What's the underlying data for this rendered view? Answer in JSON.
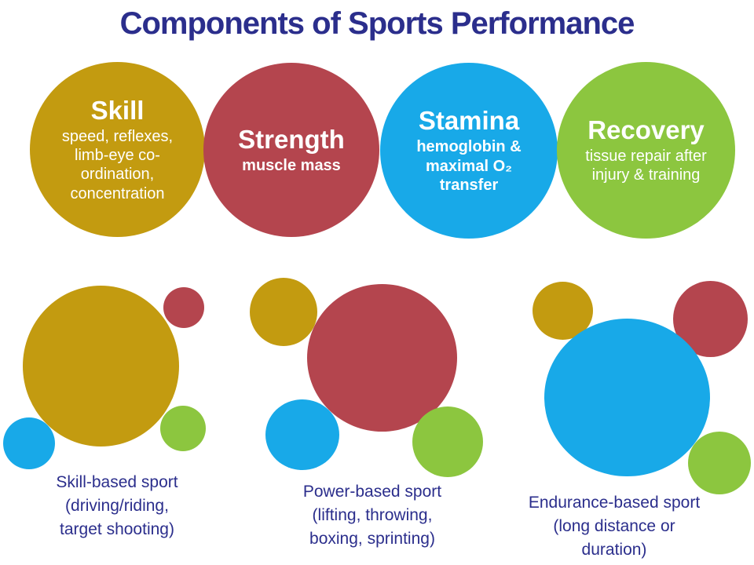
{
  "title": "Components of Sports Performance",
  "colors": {
    "background": "#ffffff",
    "navy": "#2b2e8c",
    "gold": "#c39b10",
    "red": "#b4454e",
    "blue": "#18a9e8",
    "green": "#8cc63f"
  },
  "top_circles": [
    {
      "name": "Skill",
      "color": "#c39b10",
      "desc_lines": [
        "speed, reflexes,",
        "limb-eye co-",
        "ordination,",
        "concentration"
      ]
    },
    {
      "name": "Strength",
      "color": "#b4454e",
      "desc_lines": [
        "muscle mass"
      ]
    },
    {
      "name": "Stamina",
      "color": "#18a9e8",
      "desc_lines": [
        "hemoglobin &",
        "maximal O₂",
        "transfer"
      ]
    },
    {
      "name": "Recovery",
      "color": "#8cc63f",
      "desc_lines": [
        "tissue repair after",
        "injury & training"
      ]
    }
  ],
  "sport_groups": [
    {
      "label_lines": [
        "Skill-based sport",
        "(driving/riding,",
        "target shooting)"
      ],
      "dominant_component": "Skill",
      "bubbles": [
        {
          "component": "Skill",
          "size": "large"
        },
        {
          "component": "Strength",
          "size": "small"
        },
        {
          "component": "Stamina",
          "size": "small"
        },
        {
          "component": "Recovery",
          "size": "small"
        }
      ]
    },
    {
      "label_lines": [
        "Power-based sport",
        "(lifting, throwing,",
        "boxing, sprinting)"
      ],
      "dominant_component": "Strength",
      "bubbles": [
        {
          "component": "Strength",
          "size": "large"
        },
        {
          "component": "Skill",
          "size": "medium"
        },
        {
          "component": "Stamina",
          "size": "medium"
        },
        {
          "component": "Recovery",
          "size": "medium"
        }
      ]
    },
    {
      "label_lines": [
        "Endurance-based sport",
        "(long distance or",
        "duration)"
      ],
      "dominant_component": "Stamina",
      "bubbles": [
        {
          "component": "Stamina",
          "size": "large"
        },
        {
          "component": "Skill",
          "size": "medium"
        },
        {
          "component": "Strength",
          "size": "medium"
        },
        {
          "component": "Recovery",
          "size": "medium"
        }
      ]
    }
  ]
}
